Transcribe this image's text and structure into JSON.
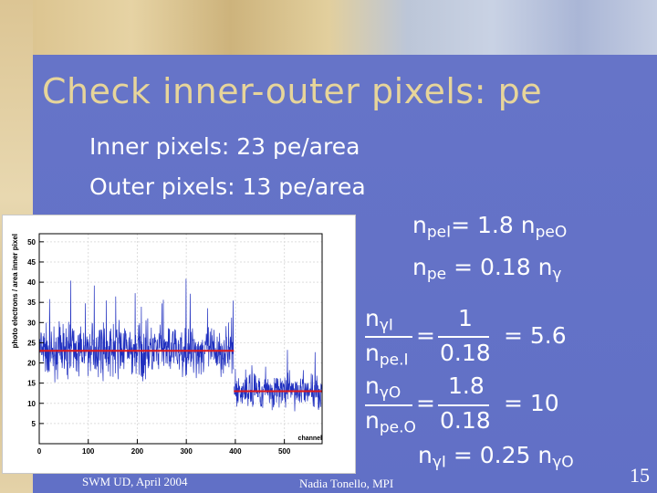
{
  "title": "Check inner-outer pixels:  pe",
  "lines": {
    "inner": "Inner pixels: 23 pe/area",
    "outer": "Outer pixels: 13 pe/area"
  },
  "eq1": {
    "lhs": "n",
    "lhs_sub": "peI",
    "mid": "= 1.8 n",
    "mid_sub": "peO"
  },
  "eq2": {
    "lhs": "n",
    "lhs_sub": "pe",
    "rhs": "= 0.18  n",
    "gamma": "γ"
  },
  "frac1": {
    "num_n": "n",
    "num_sub": "γI",
    "den_n": "n",
    "den_sub": "pe.I",
    "eq": "=",
    "num_val": "1",
    "den_val": "0.18",
    "result": "= 5.6"
  },
  "frac2": {
    "num_n": "n",
    "num_sub": "γO",
    "den_n": "n",
    "den_sub": "pe.O",
    "eq": "=",
    "num_val": "1.8",
    "den_val": "0.18",
    "result": "= 10"
  },
  "eq_final": {
    "a": "n",
    "a_sub": "γI",
    "mid": " = 0.25 n",
    "b_sub": "γO"
  },
  "footer": {
    "left": "SWM UD,  April 2004",
    "center": "Nadia Tonello, MPI",
    "page": "15"
  },
  "chart_data": {
    "type": "line",
    "xlabel": "channel",
    "ylabel": "photo electrons / area inner pixel",
    "xlim": [
      0,
      577
    ],
    "ylim": [
      0,
      52
    ],
    "xticks": [
      "0",
      "100",
      "200",
      "300",
      "400",
      "500"
    ],
    "yticks": [
      "5",
      "10",
      "15",
      "20",
      "25",
      "30",
      "35",
      "40",
      "45",
      "50"
    ],
    "xtick_values": [
      0,
      100,
      200,
      300,
      400,
      500
    ],
    "ytick_values": [
      5,
      10,
      15,
      20,
      25,
      30,
      35,
      40,
      45,
      50
    ],
    "bands": [
      {
        "x_start": 0,
        "x_end": 397,
        "mean": 23,
        "spread": 9
      },
      {
        "x_start": 397,
        "x_end": 577,
        "mean": 13,
        "spread": 6
      }
    ],
    "fit_lines": [
      {
        "x": [
          0,
          397
        ],
        "y": 23
      },
      {
        "x": [
          397,
          577
        ],
        "y": 13
      }
    ],
    "colors": {
      "data": "#1f2fbf",
      "fit": "#e01818"
    }
  }
}
